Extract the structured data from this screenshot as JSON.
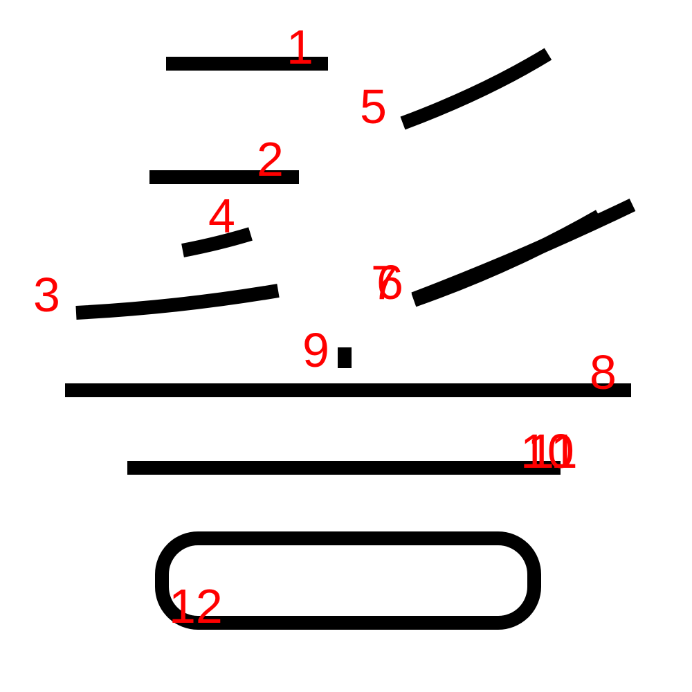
{
  "colors": {
    "stroke": "#000000",
    "label": "#ff0000",
    "background": "#ffffff"
  },
  "strokes": [
    {
      "id": "s1",
      "label": "1"
    },
    {
      "id": "s2",
      "label": "2"
    },
    {
      "id": "s3",
      "label": "3"
    },
    {
      "id": "s4",
      "label": "4"
    },
    {
      "id": "s5",
      "label": "5"
    },
    {
      "id": "s6",
      "label": "6"
    },
    {
      "id": "s7",
      "label": "7"
    },
    {
      "id": "s8",
      "label": "8"
    },
    {
      "id": "s9",
      "label": "9"
    },
    {
      "id": "s10",
      "label": "10"
    },
    {
      "id": "s11",
      "label": "11"
    },
    {
      "id": "s12",
      "label": "12"
    }
  ]
}
